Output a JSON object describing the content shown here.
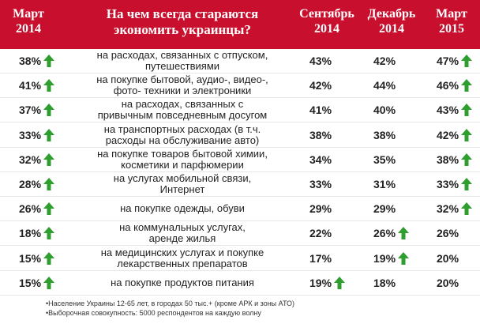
{
  "header": {
    "col1": [
      "Март",
      "2014"
    ],
    "question": [
      "На чем всегда стараются",
      "экономить украинцы?"
    ],
    "col3": [
      "Сентябрь",
      "2014"
    ],
    "col4": [
      "Декабрь",
      "2014"
    ],
    "col5": [
      "Март",
      "2015"
    ]
  },
  "rows": [
    {
      "m14": "38%",
      "m14_up": true,
      "desc": [
        "на расходах, связанных с отпуском,",
        "путешествиями"
      ],
      "s14": "43%",
      "s14_up": false,
      "d14": "42%",
      "d14_up": false,
      "m15": "47%",
      "m15_up": true
    },
    {
      "m14": "41%",
      "m14_up": true,
      "desc": [
        "на покупке бытовой, аудио-, видео-,",
        "фото- техники и электроники"
      ],
      "s14": "42%",
      "s14_up": false,
      "d14": "44%",
      "d14_up": false,
      "m15": "46%",
      "m15_up": true
    },
    {
      "m14": "37%",
      "m14_up": true,
      "desc": [
        "на расходах, связанных с",
        "привычным повседневным досугом"
      ],
      "s14": "41%",
      "s14_up": false,
      "d14": "40%",
      "d14_up": false,
      "m15": "43%",
      "m15_up": true
    },
    {
      "m14": "33%",
      "m14_up": true,
      "desc": [
        "на транспортных расходах (в т.ч.",
        "расходы на обслуживание авто)"
      ],
      "s14": "38%",
      "s14_up": false,
      "d14": "38%",
      "d14_up": false,
      "m15": "42%",
      "m15_up": true
    },
    {
      "m14": "32%",
      "m14_up": true,
      "desc": [
        "на покупке товаров бытовой химии,",
        "косметики и парфюмерии"
      ],
      "s14": "34%",
      "s14_up": false,
      "d14": "35%",
      "d14_up": false,
      "m15": "38%",
      "m15_up": true
    },
    {
      "m14": "28%",
      "m14_up": true,
      "desc": [
        "на услугах мобильной связи,",
        "Интернет"
      ],
      "s14": "33%",
      "s14_up": false,
      "d14": "31%",
      "d14_up": false,
      "m15": "33%",
      "m15_up": true
    },
    {
      "m14": "26%",
      "m14_up": true,
      "desc": [
        "на покупке одежды, обуви"
      ],
      "s14": "29%",
      "s14_up": false,
      "d14": "29%",
      "d14_up": false,
      "m15": "32%",
      "m15_up": true
    },
    {
      "m14": "18%",
      "m14_up": true,
      "desc": [
        "на коммунальных услугах,",
        "аренде жилья"
      ],
      "s14": "22%",
      "s14_up": false,
      "d14": "26%",
      "d14_up": true,
      "m15": "26%",
      "m15_up": false
    },
    {
      "m14": "15%",
      "m14_up": true,
      "desc": [
        "на медицинских услугах и покупке",
        "лекарственных препаратов"
      ],
      "s14": "17%",
      "s14_up": false,
      "d14": "19%",
      "d14_up": true,
      "m15": "20%",
      "m15_up": false
    },
    {
      "m14": "15%",
      "m14_up": true,
      "desc": [
        "на покупке продуктов питания"
      ],
      "s14": "19%",
      "s14_up": true,
      "d14": "18%",
      "d14_up": false,
      "m15": "20%",
      "m15_up": false
    }
  ],
  "notes": [
    "•Население Украины 12-65 лет, в городах 50 тыс.+ (кроме АРК и зоны АТО)",
    "•Выборочная совокупность: 5000 респондентов на каждую волну"
  ],
  "colors": {
    "header_bg": "#c8102e",
    "arrow": "#2e9e2e"
  },
  "icons": {
    "up": "green-up-arrow-icon"
  }
}
